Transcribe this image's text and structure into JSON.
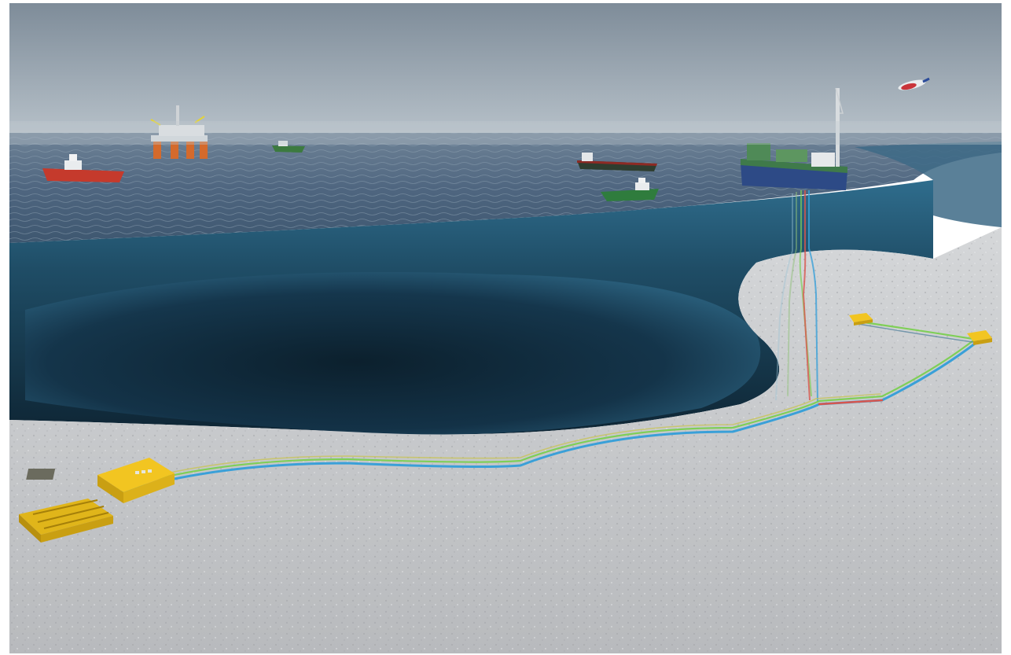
{
  "scene": {
    "description_free": true,
    "colors": {
      "sky_top": "#8a97a3",
      "sky_horizon": "#b7c2cb",
      "sea_surface": "#4d6680",
      "water_column": "#2f6f8f",
      "deep_water": "#0d2231",
      "seabed": "#c9cbcd",
      "equipment": "#f2c521",
      "flowline_blue": "#3aa0d8",
      "flowline_green": "#7fcf57",
      "flowline_red": "#d8564e",
      "fpso_hull": "#2d4a86",
      "support_vessel": "#c53a2c"
    },
    "objects": [
      "semi-submersible-platform",
      "support-vessel-red",
      "small-vessel-green",
      "tanker",
      "support-vessel-green",
      "fpso",
      "helicopter",
      "subsea-template",
      "subsea-manifold",
      "subsea-structure-far-left",
      "subsea-structure-far-right",
      "riser-bundle",
      "flowline-bundle"
    ]
  }
}
